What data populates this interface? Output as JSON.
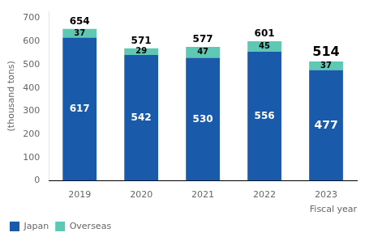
{
  "chart_data": {
    "type": "bar",
    "stacked": true,
    "xlabel": "Fiscal year",
    "ylabel": "(thousand tons)",
    "categories": [
      "2019",
      "2020",
      "2021",
      "2022",
      "2023"
    ],
    "series": [
      {
        "name": "Japan",
        "color": "#1a5aaa",
        "values": [
          617,
          542,
          530,
          556,
          477
        ]
      },
      {
        "name": "Overseas",
        "color": "#5ec8b4",
        "values": [
          37,
          29,
          47,
          45,
          37
        ]
      }
    ],
    "totals": [
      654,
      571,
      577,
      601,
      514
    ],
    "ylim": [
      0,
      730
    ],
    "yticks": [
      0,
      100,
      200,
      300,
      400,
      500,
      600,
      700
    ],
    "grid": false,
    "legend": "bottom",
    "data_labels": true
  }
}
